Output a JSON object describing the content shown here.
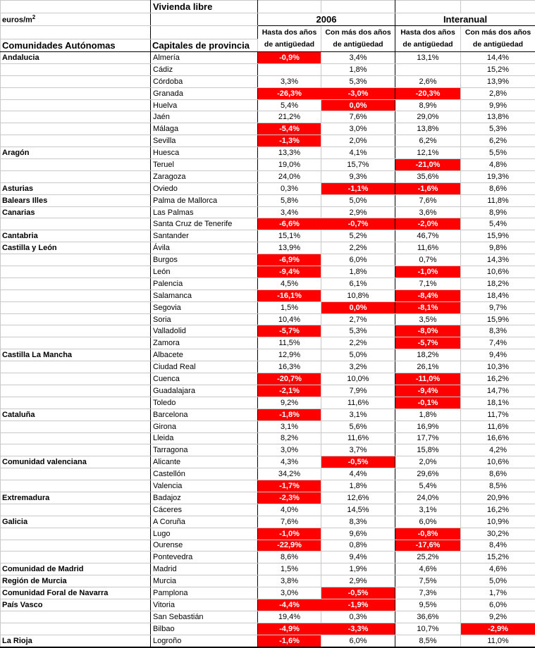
{
  "header": {
    "vivienda_libre": "Vivienda libre",
    "unit_base": "euros/m",
    "unit_exp": "2",
    "year_group": "2006",
    "interanual_group": "Interanual",
    "region_col": "Comunidades Autónomas",
    "city_col": "Capitales de provincia",
    "sub_hasta": "Hasta dos años",
    "sub_conmas": "Con más dos años",
    "sub_line2": "de antigüedad"
  },
  "colors": {
    "highlight": "#FF0000",
    "highlight_text": "#FFFFFF",
    "grid": "#C8C8C8",
    "strong_border": "#000000"
  },
  "rows": [
    {
      "region": "Andalucia",
      "city": "Almería",
      "values": [
        "-0,9%",
        "3,4%",
        "13,1%",
        "14,4%"
      ],
      "red": [
        true,
        false,
        false,
        false
      ]
    },
    {
      "region": "",
      "city": "Cádiz",
      "values": [
        "",
        "1,8%",
        "",
        "15,2%"
      ],
      "red": [
        false,
        false,
        false,
        false
      ]
    },
    {
      "region": "",
      "city": "Córdoba",
      "values": [
        "3,3%",
        "5,3%",
        "2,6%",
        "13,9%"
      ],
      "red": [
        false,
        false,
        false,
        false
      ]
    },
    {
      "region": "",
      "city": "Granada",
      "values": [
        "-26,3%",
        "-3,0%",
        "-20,3%",
        "2,8%"
      ],
      "red": [
        true,
        true,
        true,
        false
      ]
    },
    {
      "region": "",
      "city": "Huelva",
      "values": [
        "5,4%",
        "0,0%",
        "8,9%",
        "9,9%"
      ],
      "red": [
        false,
        true,
        false,
        false
      ]
    },
    {
      "region": "",
      "city": "Jaén",
      "values": [
        "21,2%",
        "7,6%",
        "29,0%",
        "13,8%"
      ],
      "red": [
        false,
        false,
        false,
        false
      ]
    },
    {
      "region": "",
      "city": "Málaga",
      "values": [
        "-5,4%",
        "3,0%",
        "13,8%",
        "5,3%"
      ],
      "red": [
        true,
        false,
        false,
        false
      ]
    },
    {
      "region": "",
      "city": "Sevilla",
      "values": [
        "-1,3%",
        "2,0%",
        "6,2%",
        "6,2%"
      ],
      "red": [
        true,
        false,
        false,
        false
      ]
    },
    {
      "region": "Aragón",
      "city": "Huesca",
      "values": [
        "13,3%",
        "4,1%",
        "12,1%",
        "5,5%"
      ],
      "red": [
        false,
        false,
        false,
        false
      ]
    },
    {
      "region": "",
      "city": "Teruel",
      "values": [
        "19,0%",
        "15,7%",
        "-21,0%",
        "4,8%"
      ],
      "red": [
        false,
        false,
        true,
        false
      ]
    },
    {
      "region": "",
      "city": "Zaragoza",
      "values": [
        "24,0%",
        "9,3%",
        "35,6%",
        "19,3%"
      ],
      "red": [
        false,
        false,
        false,
        false
      ]
    },
    {
      "region": "Asturias",
      "city": "Oviedo",
      "values": [
        "0,3%",
        "-1,1%",
        "-1,6%",
        "8,6%"
      ],
      "red": [
        false,
        true,
        true,
        false
      ]
    },
    {
      "region": "Balears Illes",
      "city": "Palma de Mallorca",
      "values": [
        "5,8%",
        "5,0%",
        "7,6%",
        "11,8%"
      ],
      "red": [
        false,
        false,
        false,
        false
      ]
    },
    {
      "region": "Canarias",
      "city": "Las Palmas",
      "values": [
        "3,4%",
        "2,9%",
        "3,6%",
        "8,9%"
      ],
      "red": [
        false,
        false,
        false,
        false
      ]
    },
    {
      "region": "",
      "city": "Santa Cruz de Tenerife",
      "values": [
        "-6,6%",
        "-0,7%",
        "-2,0%",
        "5,4%"
      ],
      "red": [
        true,
        true,
        true,
        false
      ]
    },
    {
      "region": "Cantabria",
      "city": "Santander",
      "values": [
        "15,1%",
        "5,2%",
        "46,7%",
        "15,9%"
      ],
      "red": [
        false,
        false,
        false,
        false
      ]
    },
    {
      "region": "Castilla y León",
      "city": "Ávila",
      "values": [
        "13,9%",
        "2,2%",
        "11,6%",
        "9,8%"
      ],
      "red": [
        false,
        false,
        false,
        false
      ]
    },
    {
      "region": "",
      "city": "Burgos",
      "values": [
        "-6,9%",
        "6,0%",
        "0,7%",
        "14,3%"
      ],
      "red": [
        true,
        false,
        false,
        false
      ]
    },
    {
      "region": "",
      "city": "León",
      "values": [
        "-9,4%",
        "1,8%",
        "-1,0%",
        "10,6%"
      ],
      "red": [
        true,
        false,
        true,
        false
      ]
    },
    {
      "region": "",
      "city": "Palencia",
      "values": [
        "4,5%",
        "6,1%",
        "7,1%",
        "18,2%"
      ],
      "red": [
        false,
        false,
        false,
        false
      ]
    },
    {
      "region": "",
      "city": "Salamanca",
      "values": [
        "-16,1%",
        "10,8%",
        "-8,4%",
        "18,4%"
      ],
      "red": [
        true,
        false,
        true,
        false
      ]
    },
    {
      "region": "",
      "city": "Segovia",
      "values": [
        "1,5%",
        "0,0%",
        "-8,1%",
        "9,7%"
      ],
      "red": [
        false,
        true,
        true,
        false
      ]
    },
    {
      "region": "",
      "city": "Soria",
      "values": [
        "10,4%",
        "2,7%",
        "3,5%",
        "15,9%"
      ],
      "red": [
        false,
        false,
        false,
        false
      ]
    },
    {
      "region": "",
      "city": "Valladolid",
      "values": [
        "-5,7%",
        "5,3%",
        "-8,0%",
        "8,3%"
      ],
      "red": [
        true,
        false,
        true,
        false
      ]
    },
    {
      "region": "",
      "city": "Zamora",
      "values": [
        "11,5%",
        "2,2%",
        "-5,7%",
        "7,4%"
      ],
      "red": [
        false,
        false,
        true,
        false
      ]
    },
    {
      "region": "Castilla La Mancha",
      "city": "Albacete",
      "values": [
        "12,9%",
        "5,0%",
        "18,2%",
        "9,4%"
      ],
      "red": [
        false,
        false,
        false,
        false
      ]
    },
    {
      "region": "",
      "city": "Ciudad Real",
      "values": [
        "16,3%",
        "3,2%",
        "26,1%",
        "10,3%"
      ],
      "red": [
        false,
        false,
        false,
        false
      ]
    },
    {
      "region": "",
      "city": "Cuenca",
      "values": [
        "-20,7%",
        "10,0%",
        "-11,0%",
        "16,2%"
      ],
      "red": [
        true,
        false,
        true,
        false
      ]
    },
    {
      "region": "",
      "city": "Guadalajara",
      "values": [
        "-2,1%",
        "7,9%",
        "-9,4%",
        "14,7%"
      ],
      "red": [
        true,
        false,
        true,
        false
      ]
    },
    {
      "region": "",
      "city": "Toledo",
      "values": [
        "9,2%",
        "11,6%",
        "-0,1%",
        "18,1%"
      ],
      "red": [
        false,
        false,
        true,
        false
      ]
    },
    {
      "region": "Cataluña",
      "city": "Barcelona",
      "values": [
        "-1,8%",
        "3,1%",
        "1,8%",
        "11,7%"
      ],
      "red": [
        true,
        false,
        false,
        false
      ]
    },
    {
      "region": "",
      "city": "Girona",
      "values": [
        "3,1%",
        "5,6%",
        "16,9%",
        "11,6%"
      ],
      "red": [
        false,
        false,
        false,
        false
      ]
    },
    {
      "region": "",
      "city": "Lleida",
      "values": [
        "8,2%",
        "11,6%",
        "17,7%",
        "16,6%"
      ],
      "red": [
        false,
        false,
        false,
        false
      ]
    },
    {
      "region": "",
      "city": "Tarragona",
      "values": [
        "3,0%",
        "3,7%",
        "15,8%",
        "4,2%"
      ],
      "red": [
        false,
        false,
        false,
        false
      ]
    },
    {
      "region": "Comunidad valenciana",
      "city": "Alicante",
      "values": [
        "4,3%",
        "-0,5%",
        "2,0%",
        "10,6%"
      ],
      "red": [
        false,
        true,
        false,
        false
      ]
    },
    {
      "region": "",
      "city": "Castellón",
      "values": [
        "34,2%",
        "4,4%",
        "29,6%",
        "8,6%"
      ],
      "red": [
        false,
        false,
        false,
        false
      ]
    },
    {
      "region": "",
      "city": "Valencia",
      "values": [
        "-1,7%",
        "1,8%",
        "5,4%",
        "8,5%"
      ],
      "red": [
        true,
        false,
        false,
        false
      ]
    },
    {
      "region": "Extremadura",
      "city": "Badajoz",
      "values": [
        "-2,3%",
        "12,6%",
        "24,0%",
        "20,9%"
      ],
      "red": [
        true,
        false,
        false,
        false
      ]
    },
    {
      "region": "",
      "city": "Cáceres",
      "values": [
        "4,0%",
        "14,5%",
        "3,1%",
        "16,2%"
      ],
      "red": [
        false,
        false,
        false,
        false
      ]
    },
    {
      "region": "Galicia",
      "city": "A Coruña",
      "values": [
        "7,6%",
        "8,3%",
        "6,0%",
        "10,9%"
      ],
      "red": [
        false,
        false,
        false,
        false
      ]
    },
    {
      "region": "",
      "city": "Lugo",
      "values": [
        "-1,0%",
        "9,6%",
        "-0,8%",
        "30,2%"
      ],
      "red": [
        true,
        false,
        true,
        false
      ]
    },
    {
      "region": "",
      "city": "Ourense",
      "values": [
        "-22,9%",
        "0,8%",
        "-17,6%",
        "8,4%"
      ],
      "red": [
        true,
        false,
        true,
        false
      ]
    },
    {
      "region": "",
      "city": "Pontevedra",
      "values": [
        "8,6%",
        "9,4%",
        "25,2%",
        "15,2%"
      ],
      "red": [
        false,
        false,
        false,
        false
      ]
    },
    {
      "region": "Comunidad de Madrid",
      "city": "Madrid",
      "values": [
        "1,5%",
        "1,9%",
        "4,6%",
        "4,6%"
      ],
      "red": [
        false,
        false,
        false,
        false
      ]
    },
    {
      "region": "Región de Murcia",
      "city": "Murcia",
      "values": [
        "3,8%",
        "2,9%",
        "7,5%",
        "5,0%"
      ],
      "red": [
        false,
        false,
        false,
        false
      ]
    },
    {
      "region": "Comunidad Foral de Navarra",
      "city": "Pamplona",
      "values": [
        "3,0%",
        "-0,5%",
        "7,3%",
        "1,7%"
      ],
      "red": [
        false,
        true,
        false,
        false
      ]
    },
    {
      "region": "País Vasco",
      "city": "Vitoria",
      "values": [
        "-4,4%",
        "-1,9%",
        "9,5%",
        "6,0%"
      ],
      "red": [
        true,
        true,
        false,
        false
      ]
    },
    {
      "region": "",
      "city": "San Sebastián",
      "values": [
        "19,4%",
        "0,3%",
        "36,6%",
        "9,2%"
      ],
      "red": [
        false,
        false,
        false,
        false
      ]
    },
    {
      "region": "",
      "city": "Bilbao",
      "values": [
        "-4,9%",
        "-3,3%",
        "10,7%",
        "-2,9%"
      ],
      "red": [
        true,
        true,
        false,
        true
      ]
    },
    {
      "region": "La Rioja",
      "city": "Logroño",
      "values": [
        "-1,6%",
        "6,0%",
        "8,5%",
        "11,0%"
      ],
      "red": [
        true,
        false,
        false,
        false
      ]
    }
  ]
}
